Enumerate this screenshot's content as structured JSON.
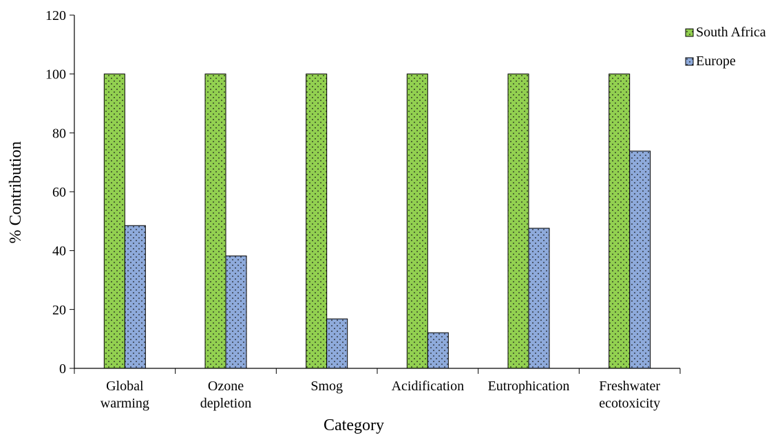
{
  "chart_data": {
    "type": "bar",
    "categories": [
      [
        "Global",
        "warming"
      ],
      [
        "Ozone",
        "depletion"
      ],
      [
        "Smog"
      ],
      [
        "Acidification"
      ],
      [
        "Eutrophication"
      ],
      [
        "Freshwater",
        "ecotoxicity"
      ]
    ],
    "series": [
      {
        "name": "South Africa",
        "values": [
          100,
          100,
          100,
          100,
          100,
          100
        ],
        "color": "#92d050"
      },
      {
        "name": "Europe",
        "values": [
          48.5,
          38.2,
          16.8,
          12.1,
          47.6,
          73.8
        ],
        "color": "#8eaadb"
      }
    ],
    "xlabel": "Category",
    "ylabel": "% Contribution",
    "ylim": [
      0,
      120
    ],
    "yticks": [
      0,
      20,
      40,
      60,
      80,
      100,
      120
    ],
    "grid": false,
    "legend_position": "top-right"
  }
}
